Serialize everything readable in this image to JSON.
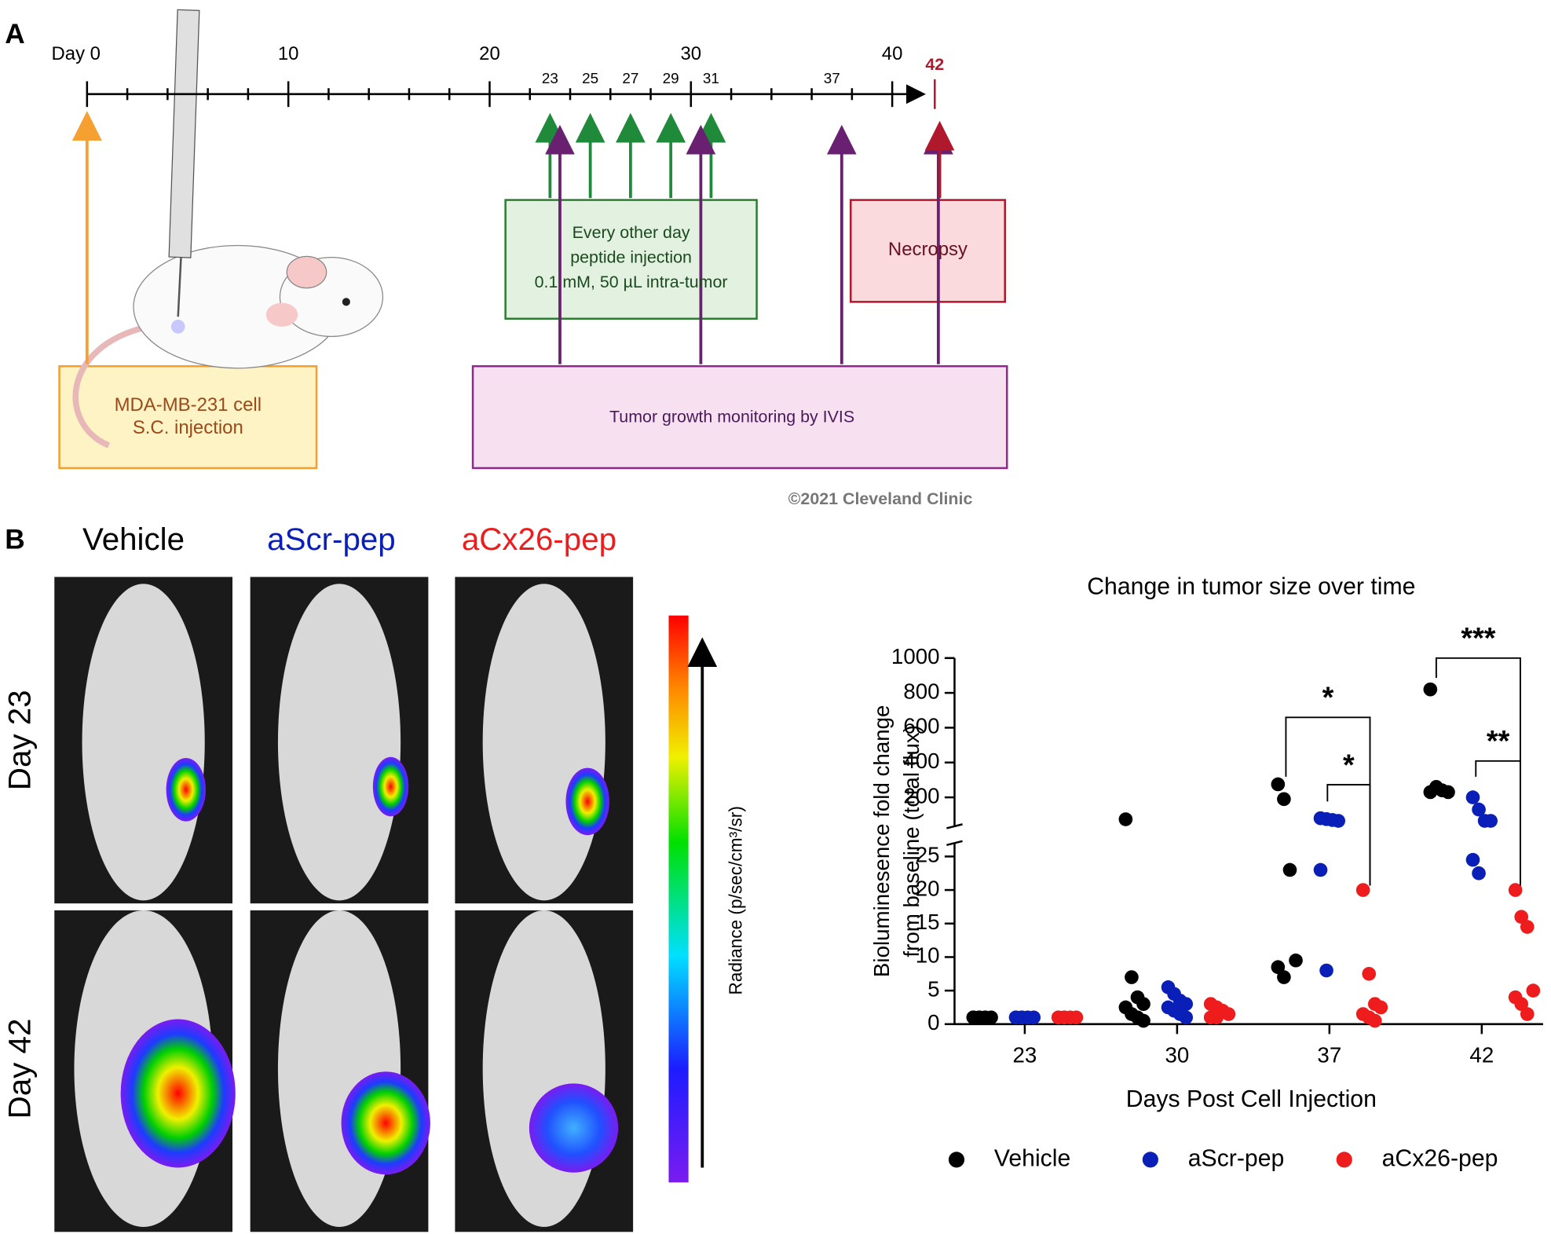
{
  "panel_labels": [
    "A",
    "B"
  ],
  "timeline": {
    "major_labels": [
      "Day 0",
      "10",
      "20",
      "30",
      "40"
    ],
    "injection_days": [
      "23",
      "25",
      "27",
      "29",
      "31"
    ],
    "imaging_day": "37",
    "end_day": "42",
    "cell_box": [
      "MDA-MB-231 cell",
      "S.C. injection"
    ],
    "peptide_box": [
      "Every other day",
      "peptide injection",
      "0.1 mM, 50 µL intra-tumor"
    ],
    "necropsy_box": "Necropsy",
    "ivis_box": "Tumor growth monitoring by IVIS",
    "copyright": "©2021 Cleveland Clinic"
  },
  "images": {
    "columns": [
      "Vehicle",
      "aScr-pep",
      "aCx26-pep"
    ],
    "rows": [
      "Day 23",
      "Day 42"
    ],
    "colorbar_label": "Radiance (p/sec/cm³/sr)"
  },
  "chart_data": {
    "type": "scatter",
    "title": "Change in tumor size over time",
    "y_label": [
      "Bioluminesence fold change",
      "from baseline (total flux)"
    ],
    "x_label": "Days Post Cell Injection",
    "categories": [
      "23",
      "30",
      "37",
      "42"
    ],
    "ylim": [
      0,
      27
    ],
    "yticks": [
      0,
      5,
      10,
      15,
      20,
      25
    ],
    "ylim_upper": [
      34,
      1000
    ],
    "yticks_upper": [
      200,
      400,
      600,
      800,
      1000
    ],
    "series": [
      {
        "name": "Vehicle",
        "color": "#000000",
        "values": [
          [
            1,
            1,
            1,
            1,
            1,
            1,
            1
          ],
          [
            74,
            7,
            4,
            3,
            2.5,
            1.5,
            1,
            0.5
          ],
          [
            275,
            190,
            23,
            9.5,
            8.5,
            7
          ],
          [
            820,
            260,
            240,
            230,
            230
          ]
        ]
      },
      {
        "name": "aScr-pep",
        "color": "#0a1fb8",
        "values": [
          [
            1,
            1,
            1,
            1,
            1,
            1
          ],
          [
            5.5,
            4.5,
            3.5,
            3,
            2.5,
            2,
            1.5,
            1
          ],
          [
            80,
            75,
            70,
            65,
            23,
            8
          ],
          [
            200,
            130,
            65,
            65,
            24.5,
            22.5
          ]
        ]
      },
      {
        "name": "aCx26-pep",
        "color": "#ee1c1c",
        "values": [
          [
            1,
            1,
            1,
            1,
            1,
            1
          ],
          [
            3,
            2.5,
            2,
            1.5,
            1,
            1
          ],
          [
            20,
            7.5,
            3,
            2.5,
            1.5,
            1,
            0.5
          ],
          [
            20,
            16,
            14.5,
            5,
            4,
            3,
            1.5
          ]
        ]
      }
    ],
    "annotations": [
      {
        "label": "*"
      },
      {
        "label": "*"
      },
      {
        "label": "***"
      },
      {
        "label": "**"
      }
    ]
  }
}
